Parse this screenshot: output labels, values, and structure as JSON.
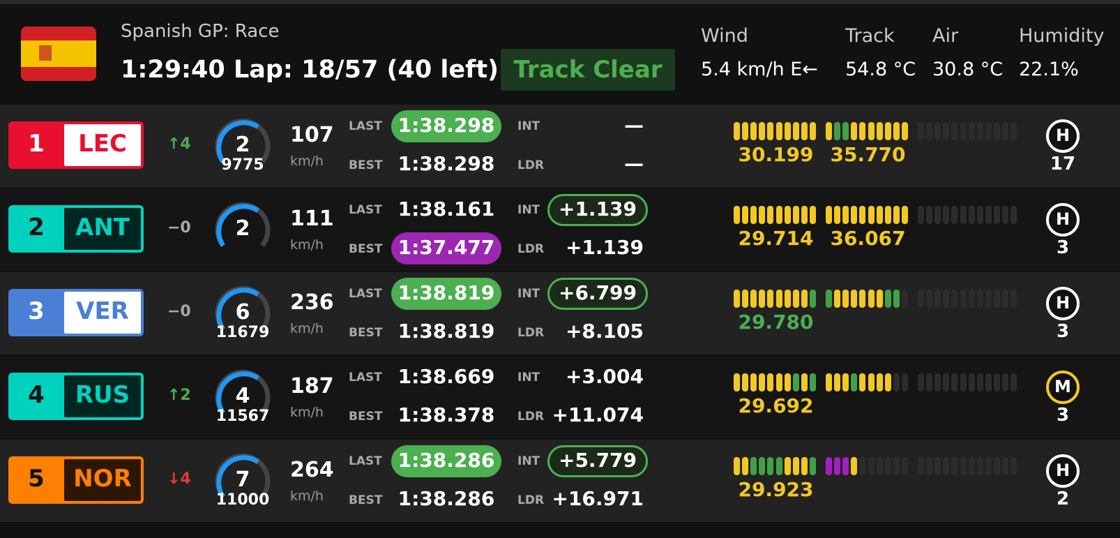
{
  "header": {
    "title": "Spanish GP: Race",
    "status_line": "1:29:40 Lap: 18/57 (40 left)",
    "track_status": "Track Clear",
    "weather": [
      {
        "label": "Wind",
        "value": "5.4 km/h E←"
      },
      {
        "label": "Track",
        "value": "54.8 °C"
      },
      {
        "label": "Air",
        "value": "30.8 °C"
      },
      {
        "label": "Humidity",
        "value": "22.1%"
      }
    ]
  },
  "labels": {
    "speed_unit": "km/h",
    "last": "LAST",
    "best": "BEST",
    "int": "INT",
    "ldr": "LDR"
  },
  "rows": [
    {
      "pos": "1",
      "code": "LEC",
      "color": "#e8102e",
      "badge": "light",
      "delta": "↑4",
      "trend": "up",
      "gear": "2",
      "rpm": "9775",
      "speed": "107",
      "last": "1:38.298",
      "last_hl": "green",
      "best": "1:38.298",
      "best_hl": "none",
      "int": "—",
      "int_hl": "none",
      "ldr": "—",
      "sectors": [
        {
          "segments": "yyyyyyyyyy",
          "time": "30.199",
          "time_color": "yellow"
        },
        {
          "segments": "yggyyyyyyy",
          "time": "35.770",
          "time_color": "yellow"
        },
        {
          "segments": "nnnnnnnnnnnn",
          "time": null,
          "time_color": null
        }
      ],
      "tyre": "H",
      "tyre_age": "17"
    },
    {
      "pos": "2",
      "code": "ANT",
      "color": "#00d2be",
      "badge": "dark",
      "delta": "−0",
      "trend": "none",
      "gear": "2",
      "rpm": null,
      "speed": "111",
      "last": "1:38.161",
      "last_hl": "none",
      "best": "1:37.477",
      "best_hl": "purple",
      "int": "+1.139",
      "int_hl": "outline",
      "ldr": "+1.139",
      "sectors": [
        {
          "segments": "yyyyyyyyyy",
          "time": "29.714",
          "time_color": "yellow"
        },
        {
          "segments": "yyyyyyyyyy",
          "time": "36.067",
          "time_color": "yellow"
        },
        {
          "segments": "nnnnnnnnnnnn",
          "time": null,
          "time_color": null
        }
      ],
      "tyre": "H",
      "tyre_age": "3"
    },
    {
      "pos": "3",
      "code": "VER",
      "color": "#4a7fd6",
      "badge": "light",
      "delta": "−0",
      "trend": "none",
      "gear": "6",
      "rpm": "11679",
      "speed": "236",
      "last": "1:38.819",
      "last_hl": "green",
      "best": "1:38.819",
      "best_hl": "none",
      "int": "+6.799",
      "int_hl": "outline",
      "ldr": "+8.105",
      "sectors": [
        {
          "segments": "yyyyyyyyyg",
          "time": "29.780",
          "time_color": "green"
        },
        {
          "segments": "gyyyyyyggn",
          "time": null,
          "time_color": null
        },
        {
          "segments": "nnnnnnnnnnnn",
          "time": null,
          "time_color": null
        }
      ],
      "tyre": "H",
      "tyre_age": "3"
    },
    {
      "pos": "4",
      "code": "RUS",
      "color": "#00d2be",
      "badge": "dark",
      "delta": "↑2",
      "trend": "up",
      "gear": "4",
      "rpm": "11567",
      "speed": "187",
      "last": "1:38.669",
      "last_hl": "none",
      "best": "1:38.378",
      "best_hl": "none",
      "int": "+3.004",
      "int_hl": "none",
      "ldr": "+11.074",
      "sectors": [
        {
          "segments": "yyyyyyygyg",
          "time": "29.692",
          "time_color": "yellow"
        },
        {
          "segments": "yyygyyyynn",
          "time": null,
          "time_color": null
        },
        {
          "segments": "nnnnnnnnnnnn",
          "time": null,
          "time_color": null
        }
      ],
      "tyre": "M",
      "tyre_age": "3"
    },
    {
      "pos": "5",
      "code": "NOR",
      "color": "#ff8000",
      "badge": "dark",
      "delta": "↓4",
      "trend": "down",
      "gear": "7",
      "rpm": "11000",
      "speed": "264",
      "last": "1:38.286",
      "last_hl": "green",
      "best": "1:38.286",
      "best_hl": "none",
      "int": "+5.779",
      "int_hl": "outline",
      "ldr": "+16.971",
      "sectors": [
        {
          "segments": "yyggggyyyg",
          "time": "29.923",
          "time_color": "yellow"
        },
        {
          "segments": "pppynnnnnn",
          "time": null,
          "time_color": null
        },
        {
          "segments": "nnnnnnnnnnnn",
          "time": null,
          "time_color": null
        }
      ],
      "tyre": "H",
      "tyre_age": "2"
    }
  ]
}
